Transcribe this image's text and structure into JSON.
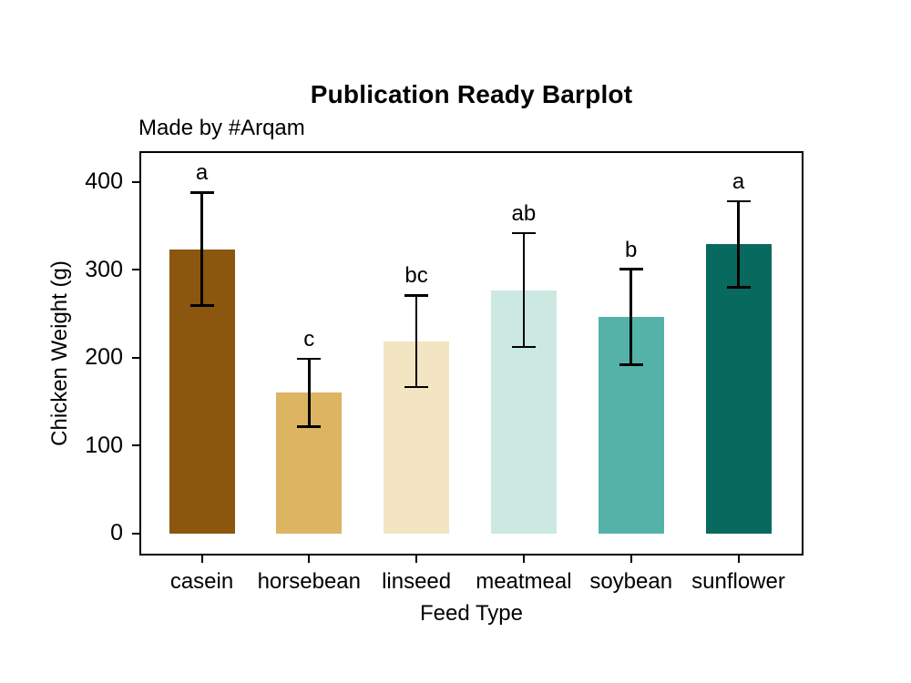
{
  "page": {
    "background": "#FFFFFF",
    "text_color": "#000000",
    "axis_color": "#000000"
  },
  "chart_data": {
    "type": "bar",
    "title": "Publication Ready Barplot",
    "subtitle": "Made by #Arqam",
    "xlabel": "Feed Type",
    "ylabel": "Chicken Weight (g)",
    "categories": [
      "casein",
      "horsebean",
      "linseed",
      "meatmeal",
      "soybean",
      "sunflower"
    ],
    "values": [
      323.6,
      160.2,
      218.8,
      276.9,
      246.4,
      328.9
    ],
    "error_low": [
      259.2,
      121.6,
      166.5,
      212.0,
      192.3,
      280.1
    ],
    "error_high": [
      388.0,
      198.8,
      271.0,
      341.8,
      300.6,
      377.8
    ],
    "sig_letters": [
      "a",
      "c",
      "bc",
      "ab",
      "b",
      "a"
    ],
    "bar_colors": [
      "#8B560D",
      "#DCB462",
      "#F3E5C2",
      "#CBE9E1",
      "#55B2A8",
      "#08695F"
    ],
    "error_bar_color": "#000000",
    "y_ticks": [
      0,
      100,
      200,
      300,
      400
    ],
    "ylim": [
      -25,
      435
    ],
    "grid": false,
    "legend": "none",
    "panel_border": true
  }
}
